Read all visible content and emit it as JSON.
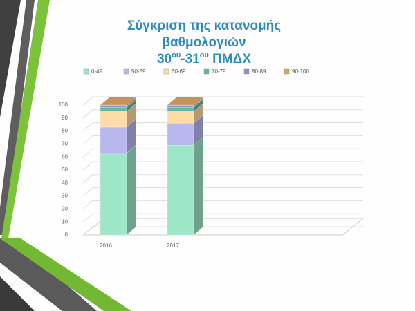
{
  "chart_data": {
    "type": "bar",
    "stacked": true,
    "title_lines": [
      "Σύγκριση της κατανομής",
      "βαθμολογιών"
    ],
    "subtitle_parts": [
      "30",
      "ου",
      "-31",
      "ου",
      " ΠΜΔΧ"
    ],
    "categories": [
      "2016",
      "2017"
    ],
    "series": [
      {
        "name": "0-49",
        "color": "#9ee6c8",
        "values": [
          63,
          69
        ]
      },
      {
        "name": "50-59",
        "color": "#b8b8ee",
        "values": [
          20,
          17
        ]
      },
      {
        "name": "60-69",
        "color": "#ffdca6",
        "values": [
          12,
          9
        ]
      },
      {
        "name": "70-79",
        "color": "#62b9a2",
        "values": [
          3,
          3
        ]
      },
      {
        "name": "80-89",
        "color": "#9090d0",
        "values": [
          1,
          1
        ]
      },
      {
        "name": "90-100",
        "color": "#d9a464",
        "values": [
          1,
          1
        ]
      }
    ],
    "ylim": [
      0,
      100
    ],
    "yticks": [
      0,
      10,
      20,
      30,
      40,
      50,
      60,
      70,
      80,
      90,
      100
    ],
    "grid": true
  }
}
